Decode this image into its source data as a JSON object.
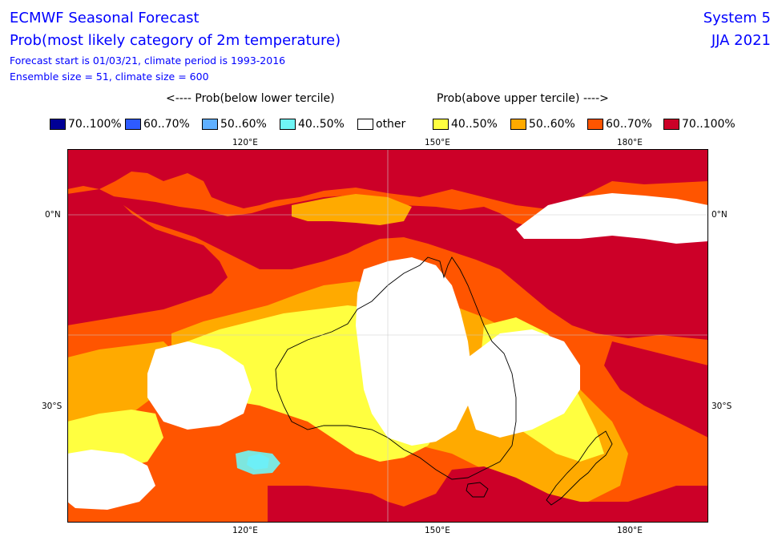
{
  "header": {
    "title": "ECMWF Seasonal Forecast",
    "subtitle": "Prob(most likely category of 2m temperature)",
    "forecast_start": "Forecast start is 01/03/21, climate period is 1993-2016",
    "ensemble": "Ensemble size = 51, climate size = 600",
    "system": "System 5",
    "season": "JJA 2021"
  },
  "legend": {
    "below_label": "<---- Prob(below lower tercile)",
    "above_label": "Prob(above upper tercile) ---->",
    "items": [
      {
        "label": "70..100%",
        "color": "#000096"
      },
      {
        "label": "60..70%",
        "color": "#2e5bff"
      },
      {
        "label": "50..60%",
        "color": "#5fb0ff"
      },
      {
        "label": "40..50%",
        "color": "#6ff6f6"
      },
      {
        "label": "other",
        "color": "#ffffff"
      },
      {
        "label": "40..50%",
        "color": "#ffff40"
      },
      {
        "label": "50..60%",
        "color": "#ffaa00"
      },
      {
        "label": "60..70%",
        "color": "#ff5500"
      },
      {
        "label": "70..100%",
        "color": "#cc0028"
      }
    ]
  },
  "axes": {
    "lon_ticks": [
      "120°E",
      "150°E",
      "180°E"
    ],
    "lat_ticks": [
      "0°N",
      "30°S"
    ]
  },
  "colors": {
    "t70": "#cc0028",
    "t60": "#ff5500",
    "t50": "#ffaa00",
    "t40": "#ffff40",
    "other": "#ffffff",
    "blue50": "#5fb0ff",
    "cyan40": "#6ff6f6"
  }
}
